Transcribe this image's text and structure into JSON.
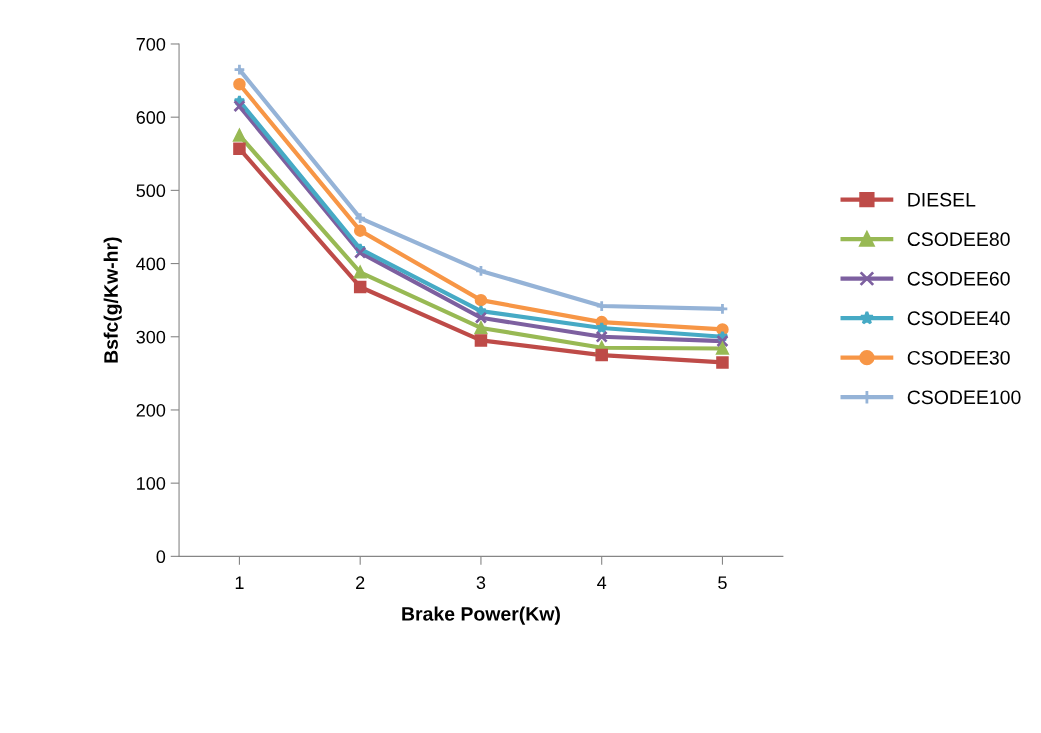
{
  "chart_data": {
    "type": "line",
    "xlabel": "Brake Power(Kw)",
    "ylabel": "Bsfc(g/Kw-hr)",
    "categories": [
      "1",
      "2",
      "3",
      "4",
      "5"
    ],
    "ylim": [
      0,
      700
    ],
    "yticks": [
      0,
      100,
      200,
      300,
      400,
      500,
      600,
      700
    ],
    "grid": false,
    "legend": "right",
    "series": [
      {
        "name": "DIESEL",
        "color": "#be4b48",
        "marker": "square",
        "values": [
          557,
          368,
          295,
          275,
          265
        ]
      },
      {
        "name": "CSODEE80",
        "color": "#98b954",
        "marker": "triangle",
        "values": [
          575,
          388,
          312,
          285,
          284
        ]
      },
      {
        "name": "CSODEE60",
        "color": "#7d60a0",
        "marker": "cross",
        "values": [
          615,
          415,
          326,
          300,
          294
        ]
      },
      {
        "name": "CSODEE40",
        "color": "#46aac5",
        "marker": "star",
        "values": [
          622,
          420,
          335,
          312,
          300
        ]
      },
      {
        "name": "CSODEE30",
        "color": "#f79646",
        "marker": "circle",
        "values": [
          645,
          445,
          350,
          320,
          310
        ]
      },
      {
        "name": "CSODEE100",
        "color": "#95b3d7",
        "marker": "plus",
        "values": [
          665,
          462,
          390,
          342,
          338
        ]
      }
    ]
  }
}
